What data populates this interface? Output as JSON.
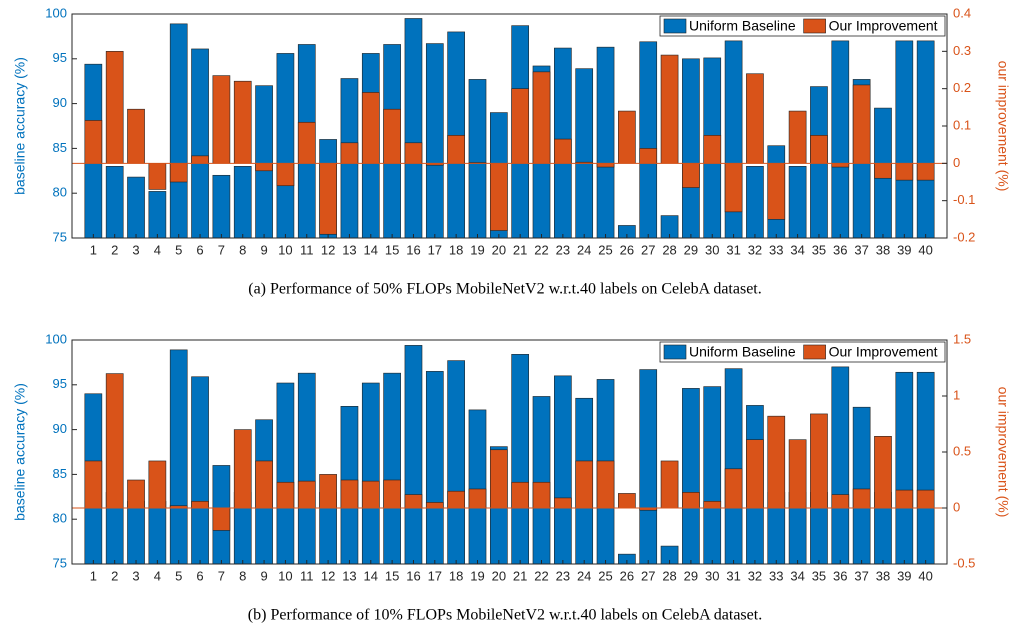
{
  "chart_data": [
    {
      "type": "bar",
      "caption": "(a)  Performance of 50% FLOPs MobileNetV2 w.r.t.40 labels on CelebA dataset.",
      "ylabel": "baseline accuracy (%)",
      "y2label": "our improvement (%)",
      "categories": [
        1,
        2,
        3,
        4,
        5,
        6,
        7,
        8,
        9,
        10,
        11,
        12,
        13,
        14,
        15,
        16,
        17,
        18,
        19,
        20,
        21,
        22,
        23,
        24,
        25,
        26,
        27,
        28,
        29,
        30,
        31,
        32,
        33,
        34,
        35,
        36,
        37,
        38,
        39,
        40
      ],
      "series": [
        {
          "name": "Uniform Baseline",
          "color": "#0072bd",
          "axis": "y",
          "values": [
            94.4,
            83,
            81.8,
            80.2,
            98.9,
            96.1,
            82,
            83,
            92.0,
            95.6,
            96.6,
            86.0,
            92.8,
            95.6,
            96.6,
            99.5,
            96.7,
            98.0,
            92.7,
            89.0,
            98.7,
            94.2,
            96.2,
            93.9,
            96.3,
            76.4,
            96.9,
            77.5,
            95.0,
            95.1,
            97.0,
            83,
            85.3,
            83,
            91.9,
            97.0,
            92.7,
            89.5,
            97.0,
            97.0
          ]
        },
        {
          "name": "Our Improvement",
          "color": "#d95319",
          "axis": "y2",
          "values": [
            0.115,
            0.3,
            0.145,
            -0.07,
            -0.05,
            0.02,
            0.235,
            0.22,
            -0.02,
            -0.06,
            0.11,
            -0.19,
            0.055,
            0.19,
            0.145,
            0.055,
            -0.005,
            0.075,
            0.002,
            -0.18,
            0.2,
            0.245,
            0.065,
            0.003,
            -0.01,
            0.14,
            0.04,
            0.29,
            -0.065,
            0.075,
            -0.13,
            0.24,
            -0.15,
            0.14,
            0.075,
            -0.01,
            0.21,
            -0.04,
            -0.045,
            -0.045
          ]
        }
      ],
      "ylim": [
        75,
        100
      ],
      "yticks": [
        75,
        80,
        85,
        90,
        95,
        100
      ],
      "y2lim": [
        -0.2,
        0.4
      ],
      "y2ticks": [
        -0.2,
        -0.1,
        0,
        0.1,
        0.2,
        0.3,
        0.4
      ],
      "legend": "upper right"
    },
    {
      "type": "bar",
      "caption": "(b)  Performance of 10% FLOPs MobileNetV2 w.r.t.40 labels on CelebA dataset.",
      "ylabel": "baseline accuracy (%)",
      "y2label": "our improvement (%)",
      "categories": [
        1,
        2,
        3,
        4,
        5,
        6,
        7,
        8,
        9,
        10,
        11,
        12,
        13,
        14,
        15,
        16,
        17,
        18,
        19,
        20,
        21,
        22,
        23,
        24,
        25,
        26,
        27,
        28,
        29,
        30,
        31,
        32,
        33,
        34,
        35,
        36,
        37,
        38,
        39,
        40
      ],
      "series": [
        {
          "name": "Uniform Baseline",
          "color": "#0072bd",
          "axis": "y",
          "values": [
            94.0,
            83,
            82,
            82,
            98.9,
            95.9,
            86.0,
            83,
            91.1,
            95.2,
            96.3,
            83,
            92.6,
            95.2,
            96.3,
            99.4,
            96.5,
            97.7,
            92.2,
            88.1,
            98.4,
            93.7,
            96.0,
            93.5,
            95.6,
            76.1,
            96.7,
            77.0,
            94.6,
            94.8,
            96.8,
            92.7,
            83,
            83,
            83,
            97.0,
            92.5,
            83,
            96.4,
            96.4
          ]
        },
        {
          "name": "Our Improvement",
          "color": "#d95319",
          "axis": "y2",
          "values": [
            0.42,
            1.2,
            0.25,
            0.42,
            0.02,
            0.06,
            -0.2,
            0.7,
            0.42,
            0.23,
            0.24,
            0.3,
            0.25,
            0.24,
            0.25,
            0.12,
            0.05,
            0.15,
            0.17,
            0.52,
            0.23,
            0.23,
            0.09,
            0.42,
            0.42,
            0.13,
            -0.02,
            0.42,
            0.14,
            0.06,
            0.35,
            0.61,
            0.82,
            0.61,
            0.84,
            0.12,
            0.17,
            0.64,
            0.16,
            0.16
          ]
        }
      ],
      "ylim": [
        75,
        100
      ],
      "yticks": [
        75,
        80,
        85,
        90,
        95,
        100
      ],
      "y2lim": [
        -0.5,
        1.5
      ],
      "y2ticks": [
        -0.5,
        0,
        0.5,
        1,
        1.5
      ],
      "legend": "upper right"
    }
  ]
}
